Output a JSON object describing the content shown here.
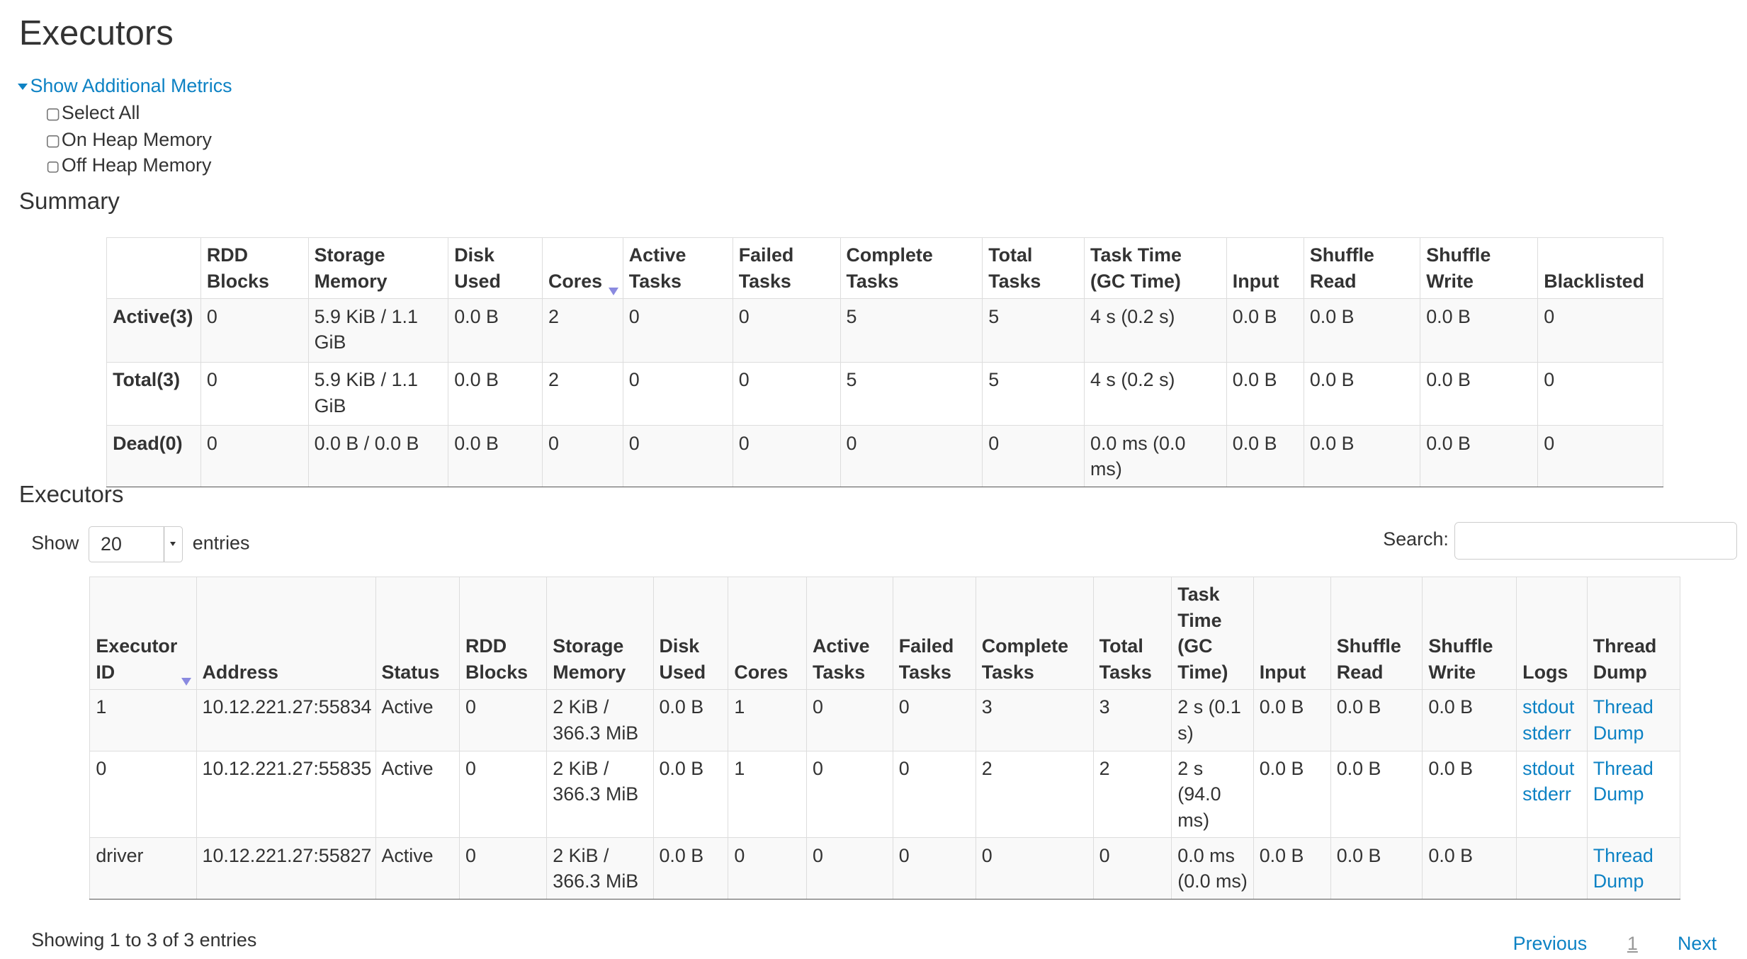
{
  "page_title": "Executors",
  "metrics_toggle": "Show Additional Metrics",
  "metric_options": [
    "Select All",
    "On Heap Memory",
    "Off Heap Memory"
  ],
  "summary": {
    "title": "Summary",
    "headers": [
      "",
      "RDD Blocks",
      "Storage Memory",
      "Disk Used",
      "Cores",
      "Active Tasks",
      "Failed Tasks",
      "Complete Tasks",
      "Total Tasks",
      "Task Time (GC Time)",
      "Input",
      "Shuffle Read",
      "Shuffle Write",
      "Blacklisted"
    ],
    "rows": [
      [
        "Active(3)",
        "0",
        "5.9 KiB / 1.1 GiB",
        "0.0 B",
        "2",
        "0",
        "0",
        "5",
        "5",
        "4 s (0.2 s)",
        "0.0 B",
        "0.0 B",
        "0.0 B",
        "0"
      ],
      [
        "Total(3)",
        "0",
        "5.9 KiB / 1.1 GiB",
        "0.0 B",
        "2",
        "0",
        "0",
        "5",
        "5",
        "4 s (0.2 s)",
        "0.0 B",
        "0.0 B",
        "0.0 B",
        "0"
      ],
      [
        "Dead(0)",
        "0",
        "0.0 B / 0.0 B",
        "0.0 B",
        "0",
        "0",
        "0",
        "0",
        "0",
        "0.0 ms (0.0 ms)",
        "0.0 B",
        "0.0 B",
        "0.0 B",
        "0"
      ]
    ]
  },
  "executors": {
    "title": "Executors",
    "show_label": "Show",
    "entries_value": "20",
    "entries_label": "entries",
    "search_label": "Search:",
    "search_value": "",
    "headers": [
      "Executor ID",
      "Address",
      "Status",
      "RDD Blocks",
      "Storage Memory",
      "Disk Used",
      "Cores",
      "Active Tasks",
      "Failed Tasks",
      "Complete Tasks",
      "Total Tasks",
      "Task Time (GC Time)",
      "Input",
      "Shuffle Read",
      "Shuffle Write",
      "Logs",
      "Thread Dump"
    ],
    "rows": [
      {
        "cells": [
          "1",
          "10.12.221.27:55834",
          "Active",
          "0",
          "2 KiB / 366.3 MiB",
          "0.0 B",
          "1",
          "0",
          "0",
          "3",
          "3",
          "2 s (0.1 s)",
          "0.0 B",
          "0.0 B",
          "0.0 B"
        ],
        "stdout": "stdout",
        "stderr": "stderr",
        "thread_dump": "Thread Dump"
      },
      {
        "cells": [
          "0",
          "10.12.221.27:55835",
          "Active",
          "0",
          "2 KiB / 366.3 MiB",
          "0.0 B",
          "1",
          "0",
          "0",
          "2",
          "2",
          "2 s (94.0 ms)",
          "0.0 B",
          "0.0 B",
          "0.0 B"
        ],
        "stdout": "stdout",
        "stderr": "stderr",
        "thread_dump": "Thread Dump"
      },
      {
        "cells": [
          "driver",
          "10.12.221.27:55827",
          "Active",
          "0",
          "2 KiB / 366.3 MiB",
          "0.0 B",
          "0",
          "0",
          "0",
          "0",
          "0",
          "0.0 ms (0.0 ms)",
          "0.0 B",
          "0.0 B",
          "0.0 B"
        ],
        "thread_dump": "Thread Dump"
      }
    ],
    "info": "Showing 1 to 3 of 3 entries",
    "pagination": {
      "previous": "Previous",
      "current": "1",
      "next": "Next"
    }
  },
  "colors": {
    "link": "#0d82c4",
    "text": "#333333",
    "stripe": "#f9f9f9"
  }
}
